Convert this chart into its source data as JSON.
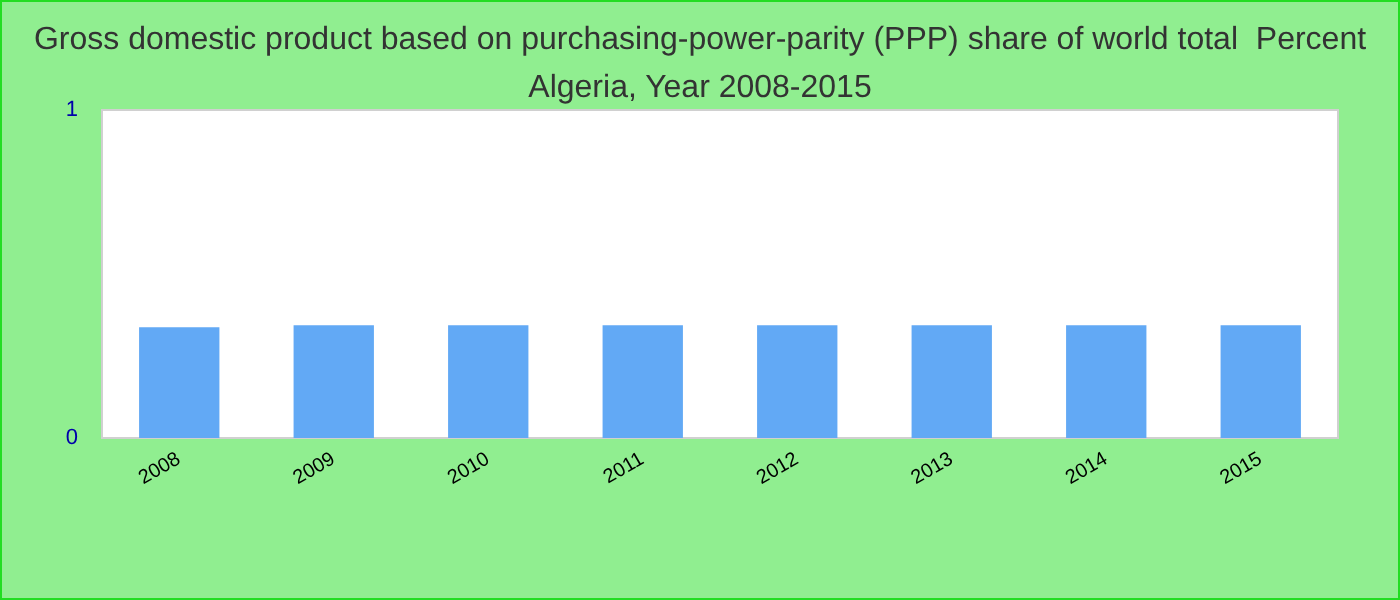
{
  "chart_data": {
    "type": "bar",
    "title": "Gross domestic product based on purchasing-power-parity (PPP) share of world total  Percent\nAlgeria, Year 2008-2015",
    "categories": [
      "2008",
      "2009",
      "2010",
      "2011",
      "2012",
      "2013",
      "2014",
      "2015"
    ],
    "values": [
      0.338,
      0.344,
      0.344,
      0.344,
      0.344,
      0.344,
      0.344,
      0.344
    ],
    "color": "#62a9f5",
    "ylim": [
      0,
      1
    ],
    "yticks": [
      0,
      1
    ],
    "grid": false
  }
}
